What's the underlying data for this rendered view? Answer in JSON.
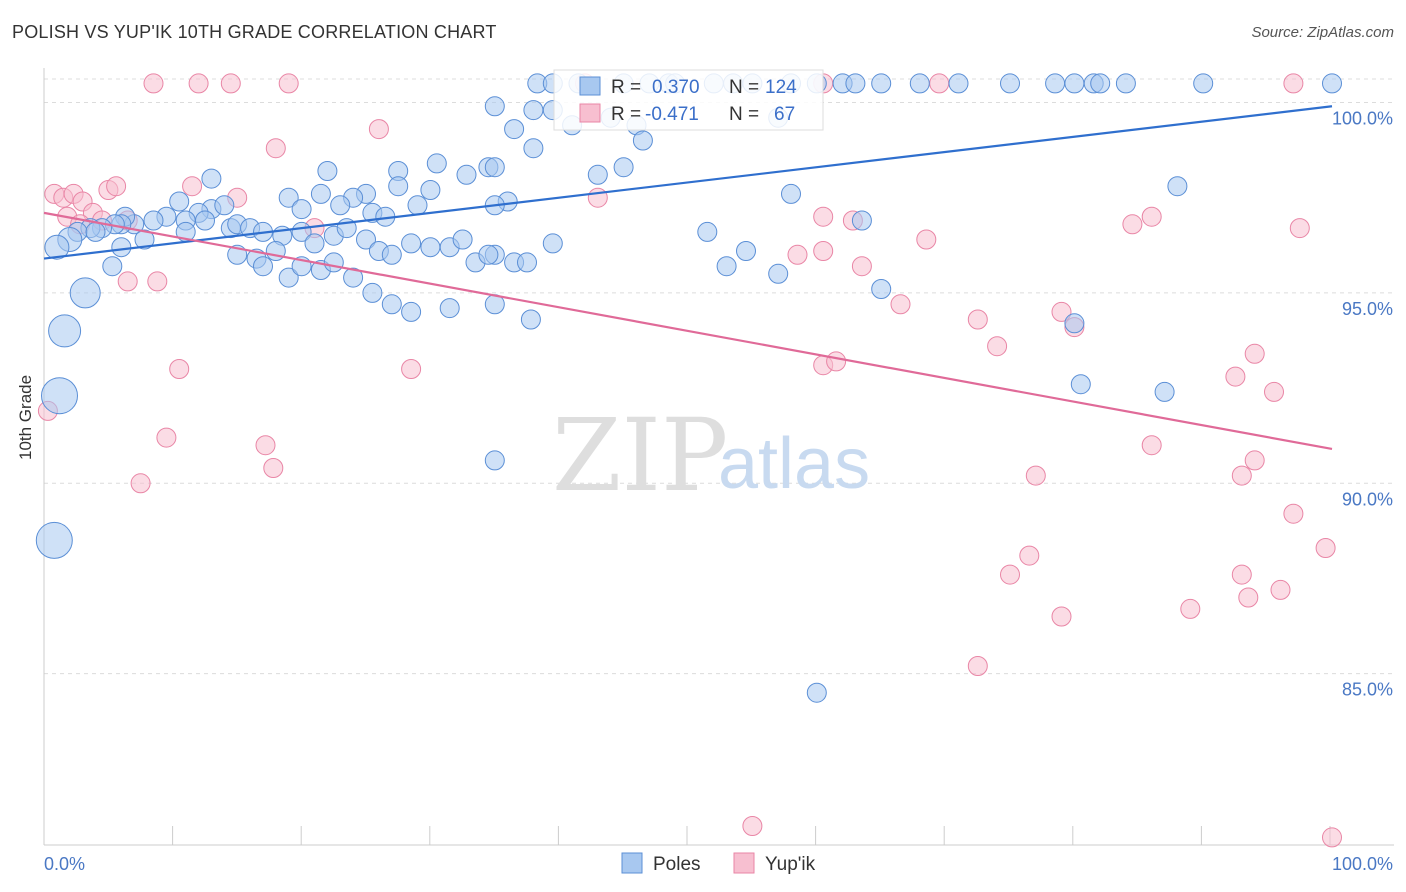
{
  "header": {
    "title": "POLISH VS YUP'IK 10TH GRADE CORRELATION CHART",
    "source": "Source: ZipAtlas.com"
  },
  "watermark": {
    "zip": "ZIP",
    "atlas": "atlas"
  },
  "colors": {
    "poles_fill": "#a8c8f0",
    "poles_stroke": "#5b8fd6",
    "poles_line": "#2f6fce",
    "yupik_fill": "#f7bfd0",
    "yupik_stroke": "#e986a6",
    "yupik_line": "#e06a98",
    "grid": "#dcdcdc",
    "tick_text": "#4a78c4"
  },
  "stats": {
    "poles": {
      "r_label": "R =",
      "r_value": "0.370",
      "n_label": "N =",
      "n_value": "124"
    },
    "yupik": {
      "r_label": "R =",
      "r_value": "-0.471",
      "n_label": "N =",
      "n_value": "67"
    }
  },
  "legend": {
    "poles": "Poles",
    "yupik": "Yup'ik"
  },
  "chart_data": {
    "type": "scatter",
    "title": "POLISH VS YUP'IK 10TH GRADE CORRELATION CHART",
    "xlabel": "",
    "ylabel": "10th Grade",
    "xlim": [
      0,
      100
    ],
    "ylim": [
      80.5,
      100.8
    ],
    "x_tick_labels": [
      "0.0%",
      "100.0%"
    ],
    "y_ticks": [
      {
        "value": 100,
        "label": "100.0%"
      },
      {
        "value": 95,
        "label": "95.0%"
      },
      {
        "value": 90,
        "label": "90.0%"
      },
      {
        "value": 85,
        "label": "85.0%"
      }
    ],
    "grid": true,
    "legend_position": "bottom-center",
    "series": [
      {
        "name": "Poles",
        "r": 0.37,
        "n": 124,
        "trend": {
          "x": [
            0,
            100
          ],
          "y": [
            95.9,
            99.9
          ]
        },
        "points": [
          [
            38.3,
            100.5
          ],
          [
            39.5,
            100.5
          ],
          [
            41.5,
            100.5
          ],
          [
            45,
            100.5
          ],
          [
            47,
            100.5
          ],
          [
            48.5,
            100.5
          ],
          [
            49,
            100.5
          ],
          [
            52,
            100.5
          ],
          [
            53.5,
            100.5
          ],
          [
            55,
            100.5
          ],
          [
            58,
            100.5
          ],
          [
            60,
            100.5
          ],
          [
            62,
            100.5
          ],
          [
            63,
            100.5
          ],
          [
            65,
            100.5
          ],
          [
            68,
            100.5
          ],
          [
            71,
            100.5
          ],
          [
            75,
            100.5
          ],
          [
            78.5,
            100.5
          ],
          [
            80,
            100.5
          ],
          [
            81.5,
            100.5
          ],
          [
            82,
            100.5
          ],
          [
            84,
            100.5
          ],
          [
            90,
            100.5
          ],
          [
            100,
            100.5
          ],
          [
            35,
            99.9
          ],
          [
            38,
            99.8
          ],
          [
            39.5,
            99.8
          ],
          [
            44,
            99.6
          ],
          [
            57,
            99.6
          ],
          [
            41,
            99.4
          ],
          [
            46,
            99.4
          ],
          [
            36.5,
            99.3
          ],
          [
            46.5,
            99.0
          ],
          [
            38,
            98.8
          ],
          [
            34.5,
            98.3
          ],
          [
            32.8,
            98.1
          ],
          [
            43,
            98.1
          ],
          [
            27.5,
            98.2
          ],
          [
            22,
            98.2
          ],
          [
            30.5,
            98.4
          ],
          [
            35,
            98.3
          ],
          [
            45,
            98.3
          ],
          [
            13,
            98.0
          ],
          [
            30,
            97.7
          ],
          [
            27.5,
            97.8
          ],
          [
            21.5,
            97.6
          ],
          [
            19,
            97.5
          ],
          [
            25,
            97.6
          ],
          [
            24,
            97.5
          ],
          [
            23,
            97.3
          ],
          [
            25.5,
            97.1
          ],
          [
            29,
            97.3
          ],
          [
            26.5,
            97.0
          ],
          [
            36,
            97.4
          ],
          [
            35,
            97.3
          ],
          [
            20,
            97.2
          ],
          [
            88,
            97.8
          ],
          [
            58,
            97.6
          ],
          [
            13,
            97.2
          ],
          [
            14,
            97.3
          ],
          [
            12,
            97.1
          ],
          [
            10.5,
            97.4
          ],
          [
            9.5,
            97.0
          ],
          [
            8.5,
            96.9
          ],
          [
            7,
            96.8
          ],
          [
            6.3,
            97.0
          ],
          [
            6,
            96.8
          ],
          [
            5.5,
            96.8
          ],
          [
            4.5,
            96.7
          ],
          [
            3.6,
            96.7
          ],
          [
            2.6,
            96.6
          ],
          [
            11,
            96.9
          ],
          [
            12.5,
            96.9
          ],
          [
            14.5,
            96.7
          ],
          [
            15,
            96.8
          ],
          [
            16,
            96.7
          ],
          [
            17,
            96.6
          ],
          [
            18.5,
            96.5
          ],
          [
            20,
            96.6
          ],
          [
            21,
            96.3
          ],
          [
            22.5,
            96.5
          ],
          [
            23.5,
            96.7
          ],
          [
            25,
            96.4
          ],
          [
            26,
            96.1
          ],
          [
            27,
            96.0
          ],
          [
            28.5,
            96.3
          ],
          [
            30,
            96.2
          ],
          [
            31.5,
            96.2
          ],
          [
            32.5,
            96.4
          ],
          [
            33.5,
            95.8
          ],
          [
            35,
            96.0
          ],
          [
            36.5,
            95.8
          ],
          [
            37.5,
            95.8
          ],
          [
            39.5,
            96.3
          ],
          [
            11,
            96.6
          ],
          [
            7.8,
            96.4
          ],
          [
            6,
            96.2
          ],
          [
            4,
            96.6
          ],
          [
            2,
            96.4
          ],
          [
            1,
            96.2
          ],
          [
            15,
            96.0
          ],
          [
            16.5,
            95.9
          ],
          [
            17,
            95.7
          ],
          [
            18,
            96.1
          ],
          [
            19,
            95.4
          ],
          [
            20,
            95.7
          ],
          [
            21.5,
            95.6
          ],
          [
            22.5,
            95.8
          ],
          [
            24,
            95.4
          ],
          [
            25.5,
            95.0
          ],
          [
            27,
            94.7
          ],
          [
            28.5,
            94.5
          ],
          [
            31.5,
            94.6
          ],
          [
            35,
            94.7
          ],
          [
            37.8,
            94.3
          ],
          [
            34.5,
            96.0
          ],
          [
            51.5,
            96.6
          ],
          [
            54.5,
            96.1
          ],
          [
            53,
            95.7
          ],
          [
            57,
            95.5
          ],
          [
            63.5,
            96.9
          ],
          [
            65,
            95.1
          ],
          [
            5.3,
            95.7
          ],
          [
            3.2,
            95.0
          ],
          [
            1.6,
            94.0
          ],
          [
            1.2,
            92.3
          ],
          [
            0.8,
            88.5
          ],
          [
            80,
            94.2
          ],
          [
            80.5,
            92.6
          ],
          [
            87,
            92.4
          ],
          [
            35,
            90.6
          ],
          [
            60,
            84.5
          ]
        ]
      },
      {
        "name": "Yup'ik",
        "r": -0.471,
        "n": 67,
        "trend": {
          "x": [
            0,
            100
          ],
          "y": [
            97.1,
            90.9
          ]
        },
        "points": [
          [
            8.5,
            100.5
          ],
          [
            12,
            100.5
          ],
          [
            14.5,
            100.5
          ],
          [
            19,
            100.5
          ],
          [
            42,
            100.5
          ],
          [
            60.5,
            100.5
          ],
          [
            69.5,
            100.5
          ],
          [
            97,
            100.5
          ],
          [
            26,
            99.3
          ],
          [
            18,
            98.8
          ],
          [
            43,
            97.5
          ],
          [
            60.5,
            97.0
          ],
          [
            62.8,
            96.9
          ],
          [
            0.8,
            97.6
          ],
          [
            1.5,
            97.5
          ],
          [
            2.3,
            97.6
          ],
          [
            3.0,
            97.4
          ],
          [
            3.8,
            97.1
          ],
          [
            5.0,
            97.7
          ],
          [
            5.6,
            97.8
          ],
          [
            1.8,
            97.0
          ],
          [
            2.8,
            96.8
          ],
          [
            4.5,
            96.9
          ],
          [
            6.5,
            96.9
          ],
          [
            11.5,
            97.8
          ],
          [
            15,
            97.5
          ],
          [
            21,
            96.7
          ],
          [
            6.5,
            95.3
          ],
          [
            8.8,
            95.3
          ],
          [
            58.5,
            96.0
          ],
          [
            60.5,
            96.1
          ],
          [
            63.5,
            95.7
          ],
          [
            68.5,
            96.4
          ],
          [
            66.5,
            94.7
          ],
          [
            72.5,
            94.3
          ],
          [
            74,
            93.6
          ],
          [
            79,
            94.5
          ],
          [
            80,
            94.1
          ],
          [
            84.5,
            96.8
          ],
          [
            86,
            97.0
          ],
          [
            97.5,
            96.7
          ],
          [
            60.5,
            93.1
          ],
          [
            61.5,
            93.2
          ],
          [
            28.5,
            93.0
          ],
          [
            10.5,
            93.0
          ],
          [
            94,
            93.4
          ],
          [
            92.5,
            92.8
          ],
          [
            95.5,
            92.4
          ],
          [
            0.3,
            91.9
          ],
          [
            9.5,
            91.2
          ],
          [
            17.2,
            91.0
          ],
          [
            17.8,
            90.4
          ],
          [
            7.5,
            90.0
          ],
          [
            77,
            90.2
          ],
          [
            86,
            91.0
          ],
          [
            94,
            90.6
          ],
          [
            93,
            90.2
          ],
          [
            97,
            89.2
          ],
          [
            99.5,
            88.3
          ],
          [
            75,
            87.6
          ],
          [
            76.5,
            88.1
          ],
          [
            79,
            86.5
          ],
          [
            89,
            86.7
          ],
          [
            93,
            87.6
          ],
          [
            93.5,
            87.0
          ],
          [
            96,
            87.2
          ],
          [
            72.5,
            85.2
          ],
          [
            55,
            81.0
          ],
          [
            100,
            80.7
          ]
        ]
      }
    ]
  }
}
